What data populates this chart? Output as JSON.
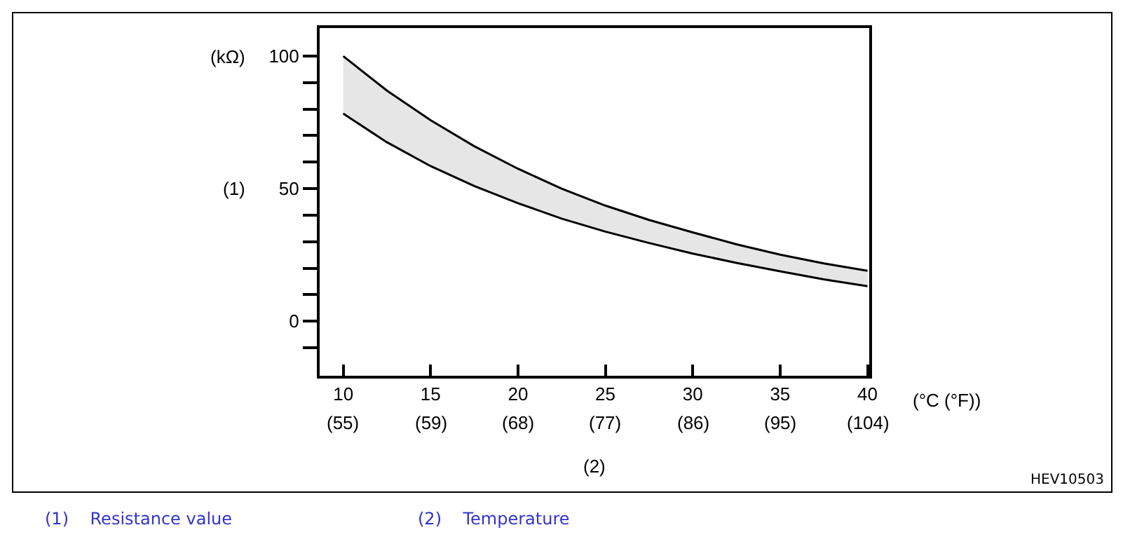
{
  "chart_data": {
    "type": "line",
    "x": [
      10,
      12.5,
      15,
      17.5,
      20,
      22.5,
      25,
      27.5,
      30,
      32.5,
      35,
      37.5,
      40
    ],
    "series": [
      {
        "color": "#000000",
        "values": [
          100,
          87,
          75.8,
          66,
          57.5,
          50,
          43.6,
          38.2,
          33.5,
          29,
          25.1,
          21.8,
          19
        ],
        "upper": [
          100,
          87,
          75.8,
          66,
          57.5,
          50,
          43.6,
          38.2,
          33.5,
          29,
          25.1,
          21.8,
          19
        ],
        "lower": [
          78.3,
          67.5,
          58.5,
          51,
          44.5,
          38.7,
          33.8,
          29.5,
          25.5,
          22,
          18.8,
          15.8,
          13.2
        ]
      },
      {
        "color": "#000000",
        "values": [
          78.3,
          67.5,
          58.5,
          51,
          44.5,
          38.7,
          33.8,
          29.5,
          25.5,
          22,
          18.8,
          15.8,
          13.2
        ]
      }
    ],
    "xlim": [
      8.65,
      40.1
    ],
    "xticks": [
      10,
      15,
      20,
      25,
      30,
      35,
      40
    ],
    "ylim": [
      -20.6,
      110.6
    ],
    "yticks": [
      {
        "value": -10,
        "label": null
      },
      0,
      {
        "value": 10,
        "label": null
      },
      {
        "value": 20,
        "label": null
      },
      {
        "value": 30,
        "label": null
      },
      {
        "value": 40,
        "label": null
      },
      50,
      {
        "value": 60,
        "label": null
      },
      {
        "value": 70,
        "label": null
      },
      {
        "value": 80,
        "label": null
      },
      {
        "value": 90,
        "label": null
      },
      100
    ],
    "ylabel": "(1)",
    "xlabel": "(2)",
    "annotations": [
      "(kΩ)",
      "(°C (°F))",
      "HEV10503",
      "(1)    Resistance value",
      "(2)    Temperature",
      "(55)",
      "(59)",
      "(68)",
      "(77)",
      "(86)",
      "(95)",
      "(104)"
    ],
    "marker": "none",
    "line_style": "solid"
  }
}
